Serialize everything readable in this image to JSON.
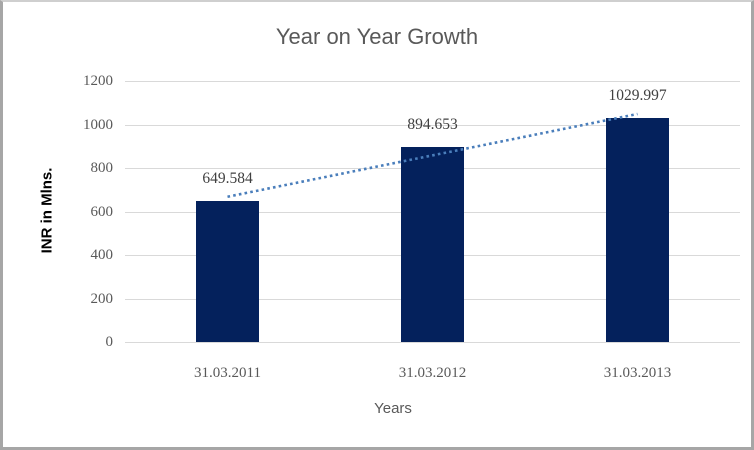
{
  "chart": {
    "title": "Year on Year Growth",
    "x_axis_title": "Years",
    "y_axis_title": "INR in Mlns."
  },
  "chart_data": {
    "type": "bar",
    "title": "Year on Year Growth",
    "xlabel": "Years",
    "ylabel": "INR in Mlns.",
    "categories": [
      "31.03.2011",
      "31.03.2012",
      "31.03.2013"
    ],
    "values": [
      649.584,
      894.653,
      1029.997
    ],
    "data_labels": [
      "649.584",
      "894.653",
      "1029.997"
    ],
    "ylim": [
      0,
      1200
    ],
    "yticks": [
      0,
      200,
      400,
      600,
      800,
      1000,
      1200
    ],
    "grid": true,
    "legend": false,
    "trendline": {
      "type": "linear",
      "style": "dotted"
    },
    "colors": {
      "bar": "#04215c",
      "trendline": "#4a7ebb",
      "gridline": "#d9d9d9",
      "title_text": "#595959",
      "tick_text": "#595959",
      "data_label_text": "#404040",
      "y_axis_title_text": "#000000",
      "frame_border": "#a6a6a6",
      "background": "#ffffff"
    }
  }
}
